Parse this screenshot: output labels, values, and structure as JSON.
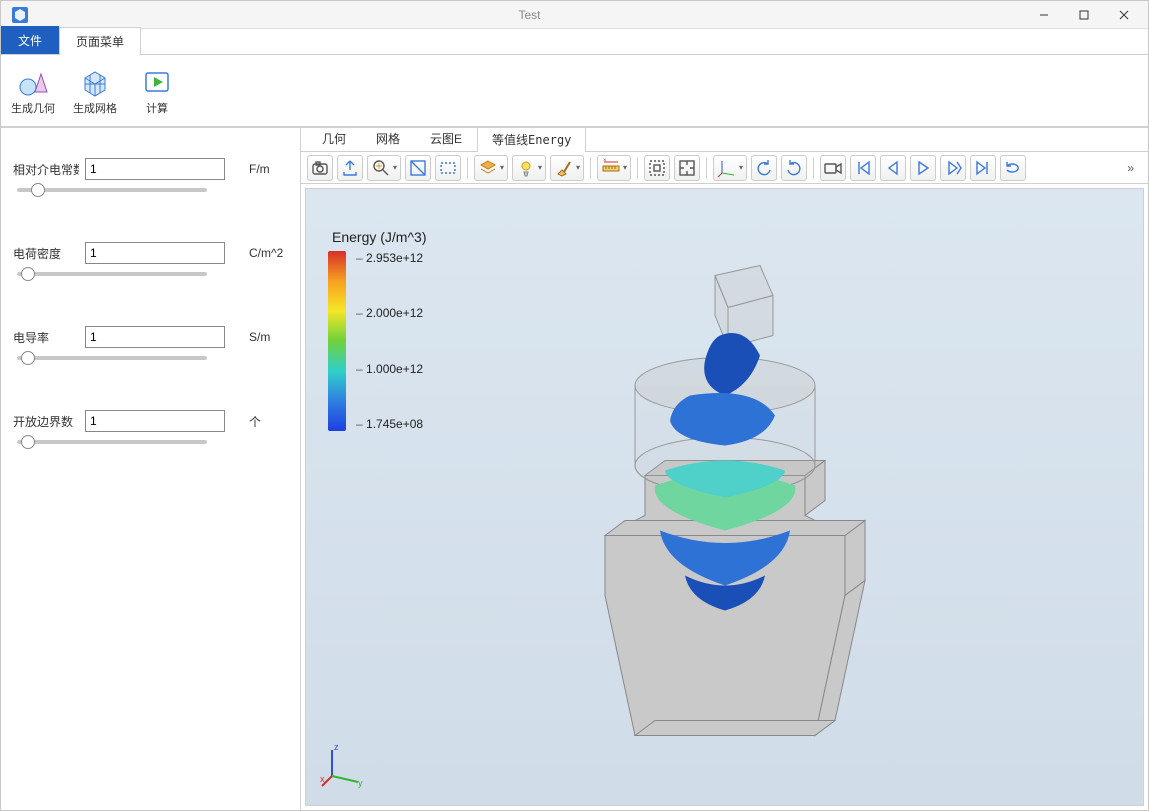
{
  "window": {
    "title": "Test",
    "app_icon_color": "#3a7ad9"
  },
  "ribbon": {
    "file_label": "文件",
    "page_menu_label": "页面菜单",
    "buttons": {
      "gen_geometry": "生成几何",
      "gen_mesh": "生成网格",
      "compute": "计算"
    }
  },
  "params": [
    {
      "label": "相对介电常数",
      "value": "1",
      "unit": "F/m",
      "slider": 8
    },
    {
      "label": "电荷密度",
      "value": "1",
      "unit": "C/m^2",
      "slider": 2
    },
    {
      "label": "电导率",
      "value": "1",
      "unit": "S/m",
      "slider": 2
    },
    {
      "label": "开放边界数",
      "value": "1",
      "unit": "个",
      "slider": 2
    }
  ],
  "view_tabs": {
    "geometry": "几何",
    "mesh": "网格",
    "cloud": "云图E",
    "isoline": "等值线Energy",
    "active": "isoline"
  },
  "toolbar_icons": [
    {
      "name": "camera-icon"
    },
    {
      "name": "export-icon"
    },
    {
      "name": "zoom-fit-icon",
      "drop": true
    },
    {
      "name": "select-box-icon"
    },
    {
      "name": "select-rect-icon"
    },
    {
      "sep": true
    },
    {
      "name": "layers-icon",
      "drop": true
    },
    {
      "name": "light-icon",
      "drop": true
    },
    {
      "name": "brush-icon",
      "drop": true
    },
    {
      "sep": true
    },
    {
      "name": "measure-icon",
      "drop": true
    },
    {
      "sep": true
    },
    {
      "name": "marquee-icon"
    },
    {
      "name": "center-icon"
    },
    {
      "sep": true
    },
    {
      "name": "axes-icon",
      "drop": true
    },
    {
      "name": "rotate-ccw-icon"
    },
    {
      "name": "rotate-cw-icon"
    },
    {
      "sep": true
    },
    {
      "name": "record-icon"
    },
    {
      "name": "skip-start-icon"
    },
    {
      "name": "step-back-icon"
    },
    {
      "name": "play-icon"
    },
    {
      "name": "step-fwd-icon"
    },
    {
      "name": "skip-end-icon"
    },
    {
      "name": "loop-icon"
    }
  ],
  "legend": {
    "title": "Energy (J/m^3)",
    "max": "2.953e+12",
    "mid_hi": "2.000e+12",
    "mid_lo": "1.000e+12",
    "min": "1.745e+08",
    "gradient_stops": [
      "#d62f2a",
      "#f6a020",
      "#f5e628",
      "#6fd13c",
      "#2fd0c8",
      "#2f7fe0",
      "#1f3fe0"
    ]
  },
  "triad": {
    "x_color": "#d62f2a",
    "y_color": "#2fb52f",
    "z_color": "#2f4fe0"
  },
  "model": {
    "body_fill": "#c9c9c9",
    "body_stroke": "#888888",
    "glass_fill": "rgba(200,200,200,0.35)",
    "glass_stroke": "#999999",
    "iso_dark_blue": "#1b4fb8",
    "iso_blue": "#2f72d6",
    "iso_cyan": "#4fd0c8",
    "iso_green": "#6fd6a0"
  }
}
